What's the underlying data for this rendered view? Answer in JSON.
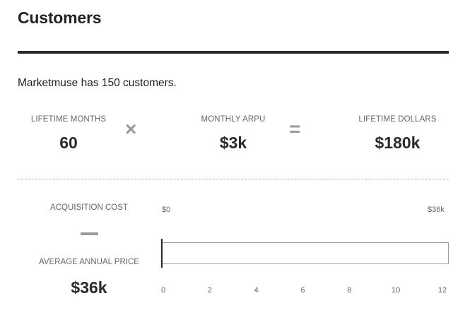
{
  "header": {
    "title": "Customers"
  },
  "summary": "Marketmuse has 150 customers.",
  "metrics": {
    "lifetime_months": {
      "label": "LIFETIME MONTHS",
      "value": "60"
    },
    "operator_times": "×",
    "monthly_arpu": {
      "label": "MONTHLY ARPU",
      "value": "$3k"
    },
    "operator_equals": "=",
    "lifetime_dollars": {
      "label": "LIFETIME DOLLARS",
      "value": "$180k"
    }
  },
  "payback": {
    "acquisition_cost_label": "ACQUISITION COST",
    "average_annual_price_label": "AVERAGE ANNUAL PRICE",
    "average_annual_price_value": "$36k",
    "range_min_label": "$0",
    "range_max_label": "$36k",
    "bar_fill_fraction": 0,
    "axis_ticks": [
      "0",
      "2",
      "4",
      "6",
      "8",
      "10",
      "12"
    ]
  }
}
